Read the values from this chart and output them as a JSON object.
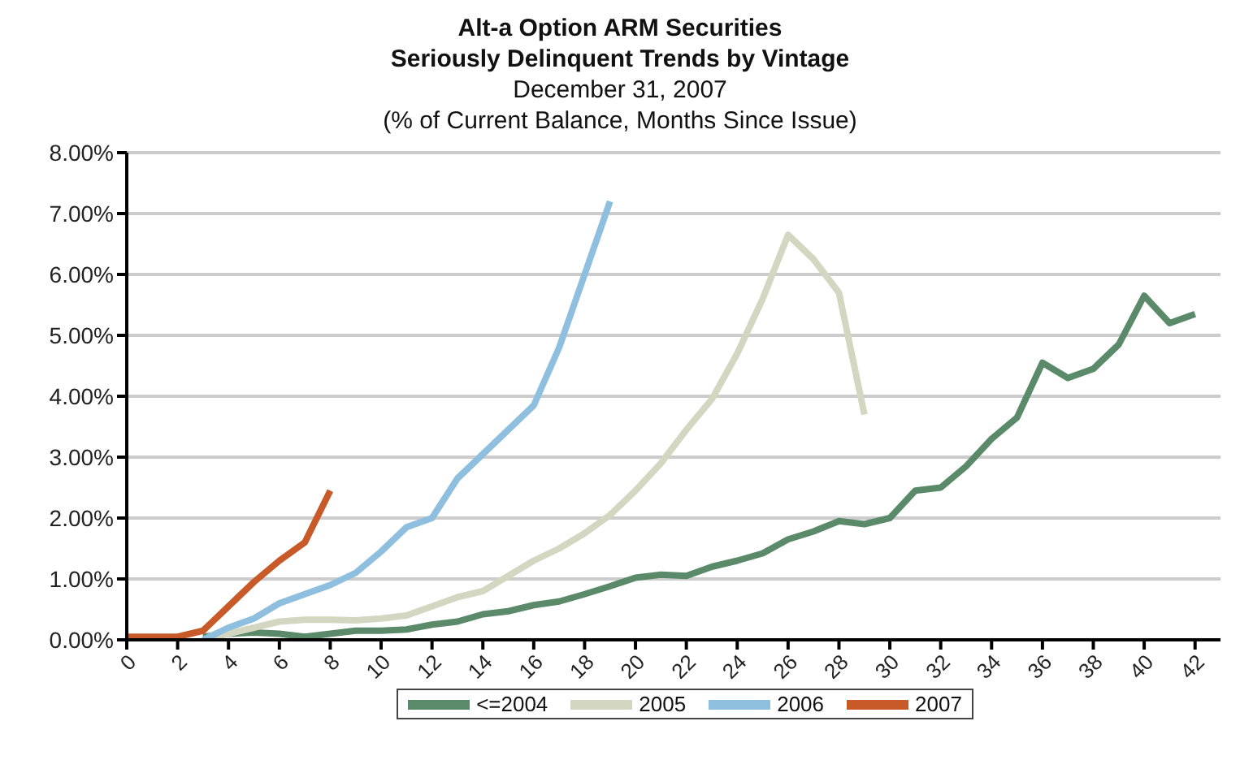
{
  "chart_data": {
    "type": "line",
    "title": "Alt-a Option ARM Securities\nSeriously Delinquent Trends by Vintage",
    "subtitle": "December 31, 2007\n(% of Current Balance, Months Since Issue)",
    "xlim": [
      0,
      43
    ],
    "xticks": [
      0,
      2,
      4,
      6,
      8,
      10,
      12,
      14,
      16,
      18,
      20,
      22,
      24,
      26,
      28,
      30,
      32,
      34,
      36,
      38,
      40,
      42
    ],
    "ylim": [
      0,
      8
    ],
    "yticks": [
      {
        "value": 0,
        "label": "0.00%"
      },
      {
        "value": 1,
        "label": "1.00%"
      },
      {
        "value": 2,
        "label": "2.00%"
      },
      {
        "value": 3,
        "label": "3.00%"
      },
      {
        "value": 4,
        "label": "4.00%"
      },
      {
        "value": 5,
        "label": "5.00%"
      },
      {
        "value": 6,
        "label": "6.00%"
      },
      {
        "value": 7,
        "label": "7.00%"
      },
      {
        "value": 8,
        "label": "8.00%"
      }
    ],
    "grid": "y",
    "legend": "bottom",
    "marker": "none",
    "line_style": "solid",
    "series": [
      {
        "name": "<=2004",
        "color": "#5a8a6a",
        "x": [
          3,
          4,
          5,
          6,
          7,
          8,
          9,
          10,
          11,
          12,
          13,
          14,
          15,
          16,
          17,
          18,
          19,
          20,
          21,
          22,
          23,
          24,
          25,
          26,
          27,
          28,
          29,
          30,
          31,
          32,
          33,
          34,
          35,
          36,
          37,
          38,
          39,
          40,
          41,
          42
        ],
        "values": [
          0.05,
          0.1,
          0.12,
          0.1,
          0.05,
          0.1,
          0.15,
          0.15,
          0.17,
          0.25,
          0.3,
          0.42,
          0.47,
          0.57,
          0.63,
          0.75,
          0.88,
          1.02,
          1.07,
          1.05,
          1.2,
          1.3,
          1.42,
          1.65,
          1.78,
          1.95,
          1.9,
          2.0,
          2.45,
          2.5,
          2.85,
          3.3,
          3.65,
          4.55,
          4.3,
          4.45,
          4.85,
          5.65,
          5.2,
          5.35
        ]
      },
      {
        "name": "2005",
        "color": "#d3d6c0",
        "x": [
          3,
          4,
          5,
          6,
          7,
          8,
          9,
          10,
          11,
          12,
          13,
          14,
          15,
          16,
          17,
          18,
          19,
          20,
          21,
          22,
          23,
          24,
          25,
          26,
          27,
          28,
          29
        ],
        "values": [
          0.0,
          0.1,
          0.2,
          0.3,
          0.33,
          0.33,
          0.32,
          0.35,
          0.4,
          0.55,
          0.7,
          0.8,
          1.05,
          1.3,
          1.5,
          1.75,
          2.05,
          2.45,
          2.9,
          3.45,
          3.95,
          4.7,
          5.6,
          6.65,
          6.25,
          5.7,
          3.7
        ]
      },
      {
        "name": "2006",
        "color": "#8fbfde",
        "x": [
          3,
          4,
          5,
          6,
          7,
          8,
          9,
          10,
          11,
          12,
          13,
          14,
          15,
          16,
          17,
          18,
          19
        ],
        "values": [
          0.0,
          0.2,
          0.35,
          0.6,
          0.75,
          0.9,
          1.1,
          1.45,
          1.85,
          2.0,
          2.65,
          3.05,
          3.45,
          3.85,
          4.8,
          6.0,
          7.2
        ]
      },
      {
        "name": "2007",
        "color": "#c85a2a",
        "x": [
          0,
          1,
          2,
          3,
          4,
          5,
          6,
          7,
          8
        ],
        "values": [
          0.05,
          0.05,
          0.05,
          0.15,
          0.55,
          0.95,
          1.3,
          1.6,
          2.45
        ]
      }
    ]
  }
}
